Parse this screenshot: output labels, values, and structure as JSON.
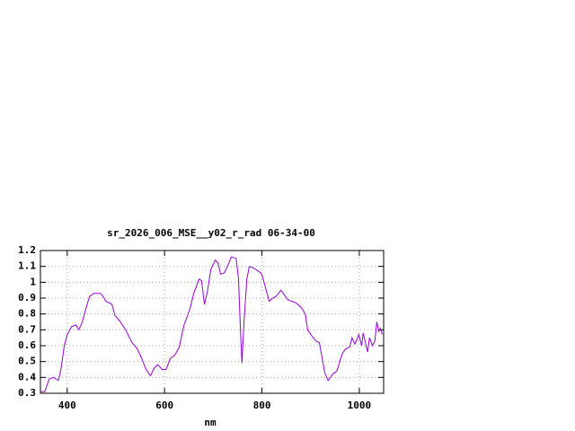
{
  "chart_data": {
    "type": "line",
    "title": "sr_2026_006_MSE__y02_r_rad 06-34-00",
    "x_label": "nm",
    "color": "#9400d3",
    "grid": true,
    "xlim": [
      345,
      1050
    ],
    "ylim": [
      0.3,
      1.2
    ],
    "xticks": [
      400,
      600,
      800,
      1000
    ],
    "yticks": [
      0.3,
      0.4,
      0.5,
      0.6,
      0.7,
      0.8,
      0.9,
      1,
      1.1,
      1.2
    ],
    "x": [
      345,
      354,
      363,
      372,
      382,
      387,
      394,
      400,
      409,
      418,
      424,
      431,
      439,
      446,
      455,
      468,
      474,
      479,
      487,
      492,
      498,
      507,
      520,
      533,
      544,
      553,
      562,
      571,
      579,
      586,
      595,
      603,
      612,
      621,
      630,
      640,
      652,
      660,
      671,
      676,
      682,
      688,
      695,
      704,
      710,
      715,
      723,
      732,
      737,
      747,
      752,
      756,
      759,
      763,
      769,
      774,
      782,
      793,
      800,
      807,
      815,
      822,
      829,
      839,
      846,
      853,
      861,
      870,
      881,
      889,
      894,
      903,
      911,
      918,
      929,
      936,
      945,
      954,
      965,
      972,
      980,
      985,
      991,
      999,
      1005,
      1008,
      1014,
      1017,
      1021,
      1027,
      1032,
      1036,
      1040,
      1043,
      1047
    ],
    "values": [
      0.31,
      0.31,
      0.39,
      0.4,
      0.38,
      0.45,
      0.6,
      0.67,
      0.72,
      0.73,
      0.7,
      0.75,
      0.84,
      0.91,
      0.93,
      0.93,
      0.91,
      0.88,
      0.87,
      0.86,
      0.79,
      0.76,
      0.7,
      0.62,
      0.58,
      0.52,
      0.45,
      0.41,
      0.46,
      0.48,
      0.45,
      0.45,
      0.52,
      0.54,
      0.59,
      0.73,
      0.83,
      0.93,
      1.02,
      1.01,
      0.86,
      0.94,
      1.08,
      1.14,
      1.12,
      1.05,
      1.06,
      1.12,
      1.16,
      1.15,
      1.02,
      0.69,
      0.49,
      0.74,
      1.02,
      1.1,
      1.09,
      1.07,
      1.05,
      0.97,
      0.88,
      0.9,
      0.91,
      0.95,
      0.92,
      0.89,
      0.88,
      0.87,
      0.84,
      0.8,
      0.7,
      0.66,
      0.63,
      0.62,
      0.43,
      0.38,
      0.42,
      0.44,
      0.55,
      0.58,
      0.59,
      0.65,
      0.61,
      0.67,
      0.6,
      0.68,
      0.6,
      0.56,
      0.65,
      0.6,
      0.63,
      0.75,
      0.69,
      0.71,
      0.67
    ]
  }
}
